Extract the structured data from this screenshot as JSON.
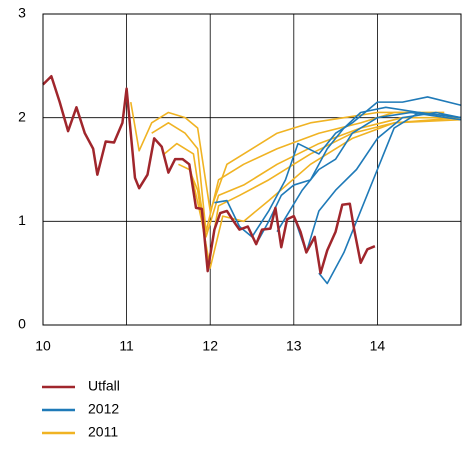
{
  "chart_data": {
    "type": "line",
    "xlim": [
      10,
      15
    ],
    "ylim": [
      0,
      3
    ],
    "xticks": [
      10,
      11,
      12,
      13,
      14
    ],
    "yticks": [
      0,
      1,
      2,
      3
    ],
    "grid": true,
    "legend": "bottom-left",
    "series": [
      {
        "name": "Utfall",
        "color": "#a0262c",
        "lines": [
          {
            "x": [
              10.0,
              10.1,
              10.2,
              10.3,
              10.4,
              10.5,
              10.6,
              10.65,
              10.75,
              10.85,
              10.95,
              11.0,
              11.05,
              11.1,
              11.15,
              11.25,
              11.33,
              11.42,
              11.5,
              11.58,
              11.67,
              11.75,
              11.83,
              11.9,
              11.97,
              12.05,
              12.12,
              12.2,
              12.28,
              12.35,
              12.45,
              12.55,
              12.62,
              12.72,
              12.78,
              12.85,
              12.92,
              13.0,
              13.08,
              13.15,
              13.25,
              13.32,
              13.4,
              13.5,
              13.58,
              13.67,
              13.72,
              13.8,
              13.88,
              13.97
            ],
            "values": [
              2.32,
              2.4,
              2.15,
              1.87,
              2.1,
              1.85,
              1.7,
              1.45,
              1.77,
              1.76,
              1.95,
              2.28,
              1.85,
              1.42,
              1.32,
              1.45,
              1.8,
              1.72,
              1.47,
              1.6,
              1.6,
              1.55,
              1.13,
              1.12,
              0.52,
              0.92,
              1.08,
              1.1,
              1.0,
              0.92,
              0.95,
              0.78,
              0.92,
              0.93,
              1.13,
              0.75,
              1.02,
              1.05,
              0.9,
              0.7,
              0.85,
              0.5,
              0.72,
              0.9,
              1.16,
              1.17,
              0.93,
              0.6,
              0.73,
              0.76
            ]
          }
        ]
      },
      {
        "name": "2012",
        "color": "#1f7ab8",
        "lines": [
          {
            "x": [
              12.05,
              12.2,
              12.35,
              12.5,
              12.7,
              12.9,
              13.05,
              13.3,
              13.5,
              13.7,
              14.0,
              14.3,
              14.6,
              15.0
            ],
            "values": [
              1.18,
              1.2,
              0.95,
              0.85,
              1.1,
              1.4,
              1.75,
              1.65,
              1.85,
              1.95,
              2.15,
              2.15,
              2.2,
              2.12
            ]
          },
          {
            "x": [
              12.55,
              12.7,
              12.85,
              13.0,
              13.2,
              13.4,
              13.6,
              13.8,
              14.1,
              14.5,
              15.0
            ],
            "values": [
              0.78,
              1.0,
              1.25,
              1.35,
              1.4,
              1.7,
              1.9,
              2.05,
              2.1,
              2.05,
              2.0
            ]
          },
          {
            "x": [
              12.8,
              12.95,
              13.1,
              13.3,
              13.5,
              13.7,
              14.0,
              14.4,
              15.0
            ],
            "values": [
              0.9,
              1.1,
              1.3,
              1.5,
              1.6,
              1.85,
              2.0,
              2.05,
              1.98
            ]
          },
          {
            "x": [
              13.0,
              13.15,
              13.3,
              13.5,
              13.75,
              14.0,
              14.3,
              14.7,
              15.0
            ],
            "values": [
              1.05,
              0.7,
              1.1,
              1.3,
              1.5,
              1.8,
              2.0,
              2.05,
              2.0
            ]
          },
          {
            "x": [
              13.3,
              13.4,
              13.6,
              13.8,
              14.0,
              14.2,
              14.5,
              15.0
            ],
            "values": [
              0.5,
              0.4,
              0.7,
              1.1,
              1.5,
              1.9,
              2.05,
              2.0
            ]
          }
        ]
      },
      {
        "name": "2011",
        "color": "#f0b323",
        "lines": [
          {
            "x": [
              11.05,
              11.15,
              11.3,
              11.5,
              11.7,
              11.85,
              12.0,
              12.2,
              12.5,
              12.8,
              13.2,
              13.6,
              14.0,
              14.5,
              15.0
            ],
            "values": [
              2.15,
              1.68,
              1.95,
              2.05,
              2.0,
              1.9,
              1.1,
              1.55,
              1.7,
              1.85,
              1.95,
              2.0,
              2.05,
              2.05,
              2.0
            ]
          },
          {
            "x": [
              11.3,
              11.5,
              11.7,
              11.85,
              11.95,
              12.1,
              12.4,
              12.8,
              13.3,
              13.8,
              14.2,
              14.8
            ],
            "values": [
              1.85,
              1.95,
              1.85,
              1.7,
              0.9,
              1.4,
              1.55,
              1.7,
              1.85,
              1.95,
              2.05,
              2.05
            ]
          },
          {
            "x": [
              11.45,
              11.6,
              11.8,
              11.95,
              12.1,
              12.4,
              12.8,
              13.3,
              13.8,
              14.3,
              14.9
            ],
            "values": [
              1.65,
              1.75,
              1.65,
              0.85,
              1.25,
              1.35,
              1.55,
              1.75,
              1.9,
              2.0,
              2.0
            ]
          },
          {
            "x": [
              11.62,
              11.75,
              11.85,
              11.98,
              12.1,
              12.35,
              12.7,
              13.2,
              13.7,
              14.2,
              15.0
            ],
            "values": [
              1.55,
              1.5,
              1.3,
              0.6,
              1.15,
              1.25,
              1.4,
              1.65,
              1.85,
              1.95,
              2.0
            ]
          },
          {
            "x": [
              11.75,
              11.9,
              12.0,
              12.15,
              12.4,
              12.7,
              13.2,
              13.7,
              14.2,
              15.0
            ],
            "values": [
              1.55,
              1.0,
              0.55,
              1.05,
              1.0,
              1.2,
              1.55,
              1.8,
              1.95,
              1.98
            ]
          }
        ]
      }
    ]
  }
}
